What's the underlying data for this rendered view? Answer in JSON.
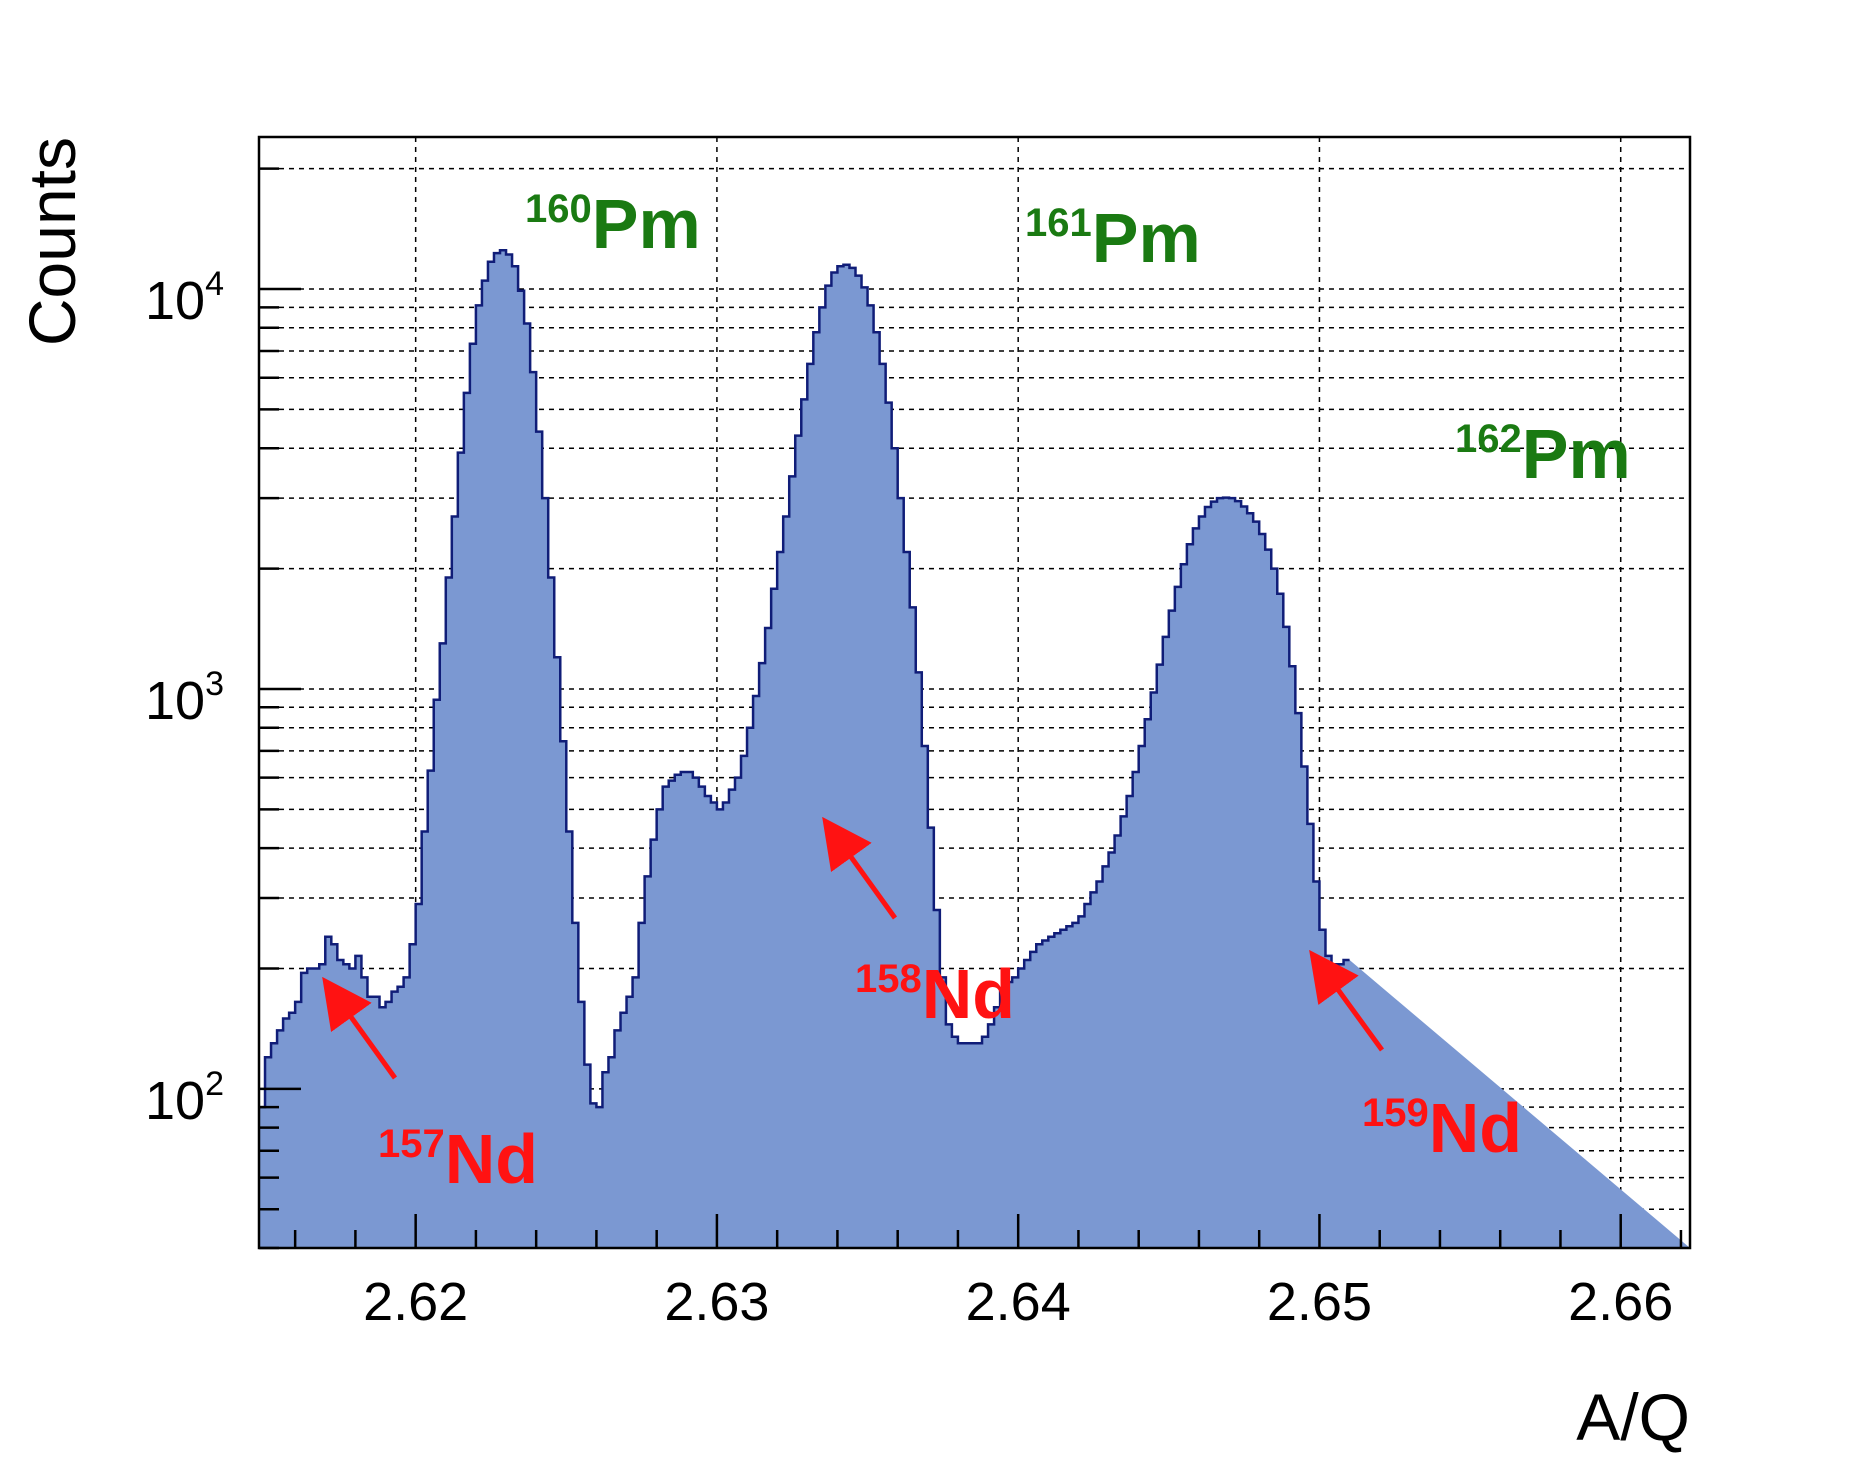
{
  "chart_data": {
    "type": "histogram",
    "xlabel": "A/Q",
    "ylabel": "Counts",
    "xlim": [
      2.6148,
      2.6623
    ],
    "ylim": [
      40,
      24000
    ],
    "yscale": "log",
    "grid": true,
    "x_ticks": [
      "2.62",
      "2.63",
      "2.64",
      "2.65",
      "2.66"
    ],
    "x_tick_values": [
      2.62,
      2.63,
      2.64,
      2.65,
      2.66
    ],
    "y_ticks": [
      {
        "value": 100,
        "base": "10",
        "exp": "2"
      },
      {
        "value": 1000,
        "base": "10",
        "exp": "3"
      },
      {
        "value": 10000,
        "base": "10",
        "exp": "4"
      }
    ],
    "fill_color": "#7b98d2",
    "line_color": "#101d78",
    "bins": {
      "x0": 2.6148,
      "width": 0.0002,
      "values": [
        90,
        120,
        130,
        140,
        150,
        155,
        165,
        195,
        200,
        200,
        205,
        240,
        230,
        210,
        205,
        200,
        215,
        190,
        170,
        170,
        160,
        165,
        175,
        180,
        190,
        230,
        290,
        440,
        625,
        940,
        1300,
        1900,
        2700,
        3900,
        5500,
        7300,
        9100,
        10500,
        11700,
        12300,
        12500,
        12200,
        11400,
        9900,
        8200,
        6200,
        4400,
        3000,
        1900,
        1200,
        740,
        440,
        260,
        165,
        115,
        92,
        90,
        110,
        120,
        140,
        155,
        170,
        190,
        260,
        340,
        420,
        500,
        570,
        590,
        610,
        620,
        620,
        600,
        570,
        540,
        520,
        500,
        520,
        560,
        600,
        680,
        800,
        960,
        1160,
        1420,
        1780,
        2200,
        2700,
        3400,
        4300,
        5300,
        6500,
        7800,
        9000,
        10200,
        11000,
        11400,
        11500,
        11300,
        10800,
        10100,
        9100,
        7800,
        6500,
        5200,
        4000,
        3000,
        2200,
        1600,
        1100,
        720,
        450,
        280,
        190,
        145,
        135,
        130,
        130,
        130,
        130,
        135,
        145,
        160,
        175,
        185,
        190,
        200,
        210,
        220,
        230,
        235,
        240,
        245,
        250,
        255,
        260,
        270,
        290,
        310,
        330,
        360,
        390,
        430,
        480,
        540,
        620,
        720,
        840,
        980,
        1150,
        1350,
        1570,
        1800,
        2050,
        2300,
        2520,
        2700,
        2850,
        2940,
        3000,
        3010,
        3000,
        2950,
        2860,
        2750,
        2620,
        2440,
        2230,
        2000,
        1730,
        1430,
        1140,
        870,
        640,
        460,
        330,
        250,
        215,
        205,
        205,
        210
      ]
    },
    "peak_labels": [
      {
        "isotope": "160",
        "element": "Pm",
        "color": "#1a7a12"
      },
      {
        "isotope": "161",
        "element": "Pm",
        "color": "#1a7a12"
      },
      {
        "isotope": "162",
        "element": "Pm",
        "color": "#1a7a12"
      }
    ],
    "annotations": [
      {
        "isotope": "157",
        "element": "Nd",
        "color": "#ff1212",
        "arrow_to_x": 2.617,
        "arrow_to_y": 180
      },
      {
        "isotope": "158",
        "element": "Nd",
        "color": "#ff1212",
        "arrow_to_x": 2.6334,
        "arrow_to_y": 450
      },
      {
        "isotope": "159",
        "element": "Nd",
        "color": "#ff1212",
        "arrow_to_x": 2.6496,
        "arrow_to_y": 200
      }
    ]
  }
}
